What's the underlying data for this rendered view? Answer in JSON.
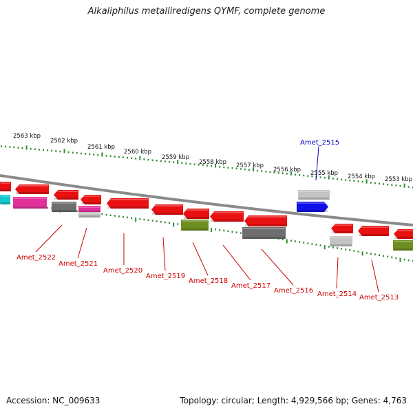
{
  "title": "Alkaliphilus metalliredigens QYMF, complete genome",
  "footer": {
    "accession": "Accession: NC_009633",
    "stats": "Topology: circular; Length: 4,929,566 bp; Genes: 4,763"
  },
  "colors": {
    "backbone": "#8a8a8a",
    "tick": "#2e8b2e",
    "label_red": "#cc0000",
    "label_blue": "#0000cc",
    "red": "#e81010",
    "magenta": "#e0309a",
    "cyan": "#10c8d0",
    "darkgray": "#6e6e6e",
    "lightgray": "#c4c4c4",
    "olive": "#6e8e20",
    "blue": "#1010e8"
  },
  "scale_labels": [
    "2563 kbp",
    "2562 kbp",
    "2561 kbp",
    "2560 kbp",
    "2559 kbp",
    "2558 kbp",
    "2557 kbp",
    "2556 kbp",
    "2555 kbp",
    "2554 kbp",
    "2553 kbp"
  ],
  "gene_labels": [
    {
      "name": "Amet_2522",
      "color": "red"
    },
    {
      "name": "Amet_2521",
      "color": "red"
    },
    {
      "name": "Amet_2520",
      "color": "red"
    },
    {
      "name": "Amet_2519",
      "color": "red"
    },
    {
      "name": "Amet_2518",
      "color": "red"
    },
    {
      "name": "Amet_2517",
      "color": "red"
    },
    {
      "name": "Amet_2516",
      "color": "red"
    },
    {
      "name": "Amet_2515",
      "color": "blue"
    },
    {
      "name": "Amet_2514",
      "color": "red"
    },
    {
      "name": "Amet_2513",
      "color": "red"
    }
  ]
}
